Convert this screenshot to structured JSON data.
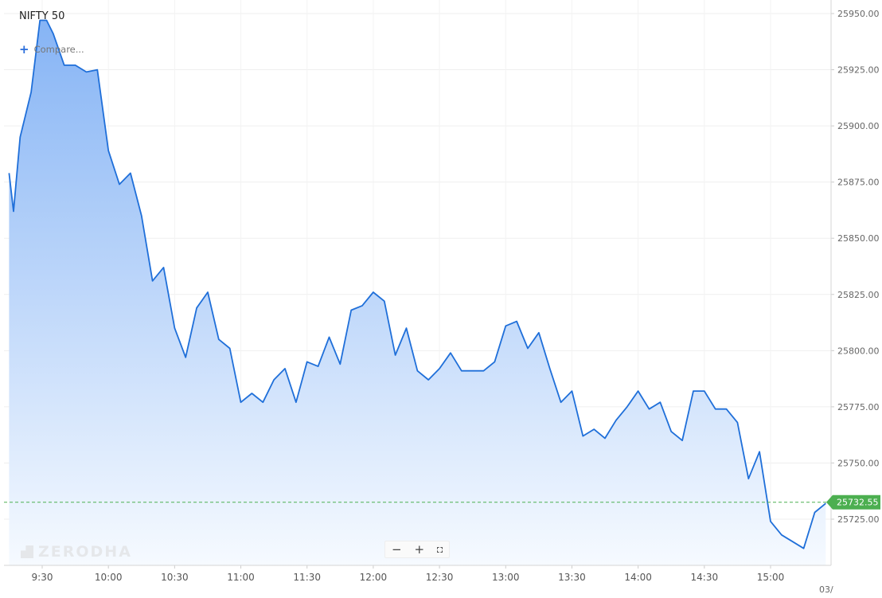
{
  "title": "NIFTY 50",
  "compare_label": "Compare...",
  "watermark": "ZERODHA",
  "zoom": {
    "out": "−",
    "in": "+",
    "fullscreen": "⛶"
  },
  "colors": {
    "line": "#1f6fd9",
    "fill_top": "#86b4f5",
    "fill_bottom": "#f6faff",
    "price_tag": "#4caf50"
  },
  "chart_data": {
    "type": "area",
    "title": "NIFTY 50",
    "last_price": 25732.55,
    "last_price_label": "25732.55",
    "date_label": "03/",
    "ylim": [
      25700,
      25952
    ],
    "yticks": [
      25725,
      25750,
      25775,
      25800,
      25825,
      25850,
      25875,
      25900,
      25925,
      25950
    ],
    "ytick_labels": [
      "25725.00",
      "25750.00",
      "25775.00",
      "25800.00",
      "25825.00",
      "25850.00",
      "25875.00",
      "25900.00",
      "25925.00",
      "25950.00"
    ],
    "xlim_minutes": [
      9.15,
      15.35
    ],
    "xticks": [
      "9:30",
      "10:00",
      "10:30",
      "11:00",
      "11:30",
      "12:00",
      "12:30",
      "13:00",
      "13:30",
      "14:00",
      "14:30",
      "15:00"
    ],
    "grid": true,
    "series": [
      {
        "x": [
          "9:15",
          "9:17",
          "9:20",
          "9:25",
          "9:29",
          "9:32",
          "9:35",
          "9:40",
          "9:45",
          "9:50",
          "9:55",
          "10:00",
          "10:05",
          "10:10",
          "10:15",
          "10:20",
          "10:25",
          "10:30",
          "10:35",
          "10:40",
          "10:45",
          "10:50",
          "10:55",
          "11:00",
          "11:05",
          "11:10",
          "11:15",
          "11:20",
          "11:25",
          "11:30",
          "11:35",
          "11:40",
          "11:45",
          "11:50",
          "11:55",
          "12:00",
          "12:05",
          "12:10",
          "12:15",
          "12:20",
          "12:25",
          "12:30",
          "12:35",
          "12:40",
          "12:45",
          "12:50",
          "12:55",
          "13:00",
          "13:05",
          "13:10",
          "13:15",
          "13:20",
          "13:25",
          "13:30",
          "13:35",
          "13:40",
          "13:45",
          "13:50",
          "13:55",
          "14:00",
          "14:05",
          "14:10",
          "14:15",
          "14:20",
          "14:25",
          "14:30",
          "14:35",
          "14:40",
          "14:45",
          "14:50",
          "14:55",
          "15:00",
          "15:05",
          "15:10",
          "15:15",
          "15:20",
          "15:25"
        ],
        "values": [
          25879,
          25862,
          25895,
          25915,
          25947,
          25947,
          25941,
          25927,
          25927,
          25924,
          25925,
          25889,
          25874,
          25879,
          25860,
          25831,
          25837,
          25810,
          25797,
          25819,
          25826,
          25805,
          25801,
          25777,
          25781,
          25777,
          25787,
          25792,
          25777,
          25795,
          25793,
          25806,
          25794,
          25818,
          25820,
          25826,
          25822,
          25798,
          25810,
          25791,
          25787,
          25792,
          25799,
          25791,
          25791,
          25791,
          25795,
          25811,
          25813,
          25801,
          25808,
          25792,
          25777,
          25782,
          25762,
          25765,
          25761,
          25769,
          25775,
          25782,
          25774,
          25777,
          25764,
          25760,
          25782,
          25782,
          25774,
          25774,
          25768,
          25743,
          25755,
          25724,
          25718,
          25715,
          25712,
          25728,
          25732
        ]
      }
    ]
  }
}
